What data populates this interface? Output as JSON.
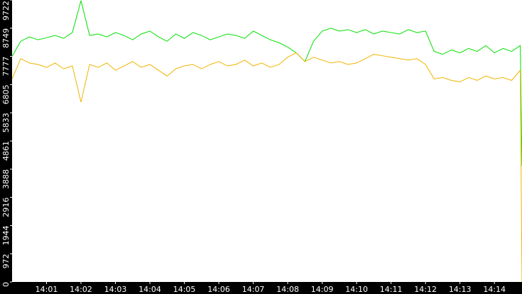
{
  "chart_data": {
    "type": "line",
    "x": [
      0,
      0.25,
      0.5,
      0.75,
      1,
      1.25,
      1.5,
      1.75,
      2,
      2.25,
      2.5,
      2.75,
      3,
      3.25,
      3.5,
      3.75,
      4,
      4.25,
      4.5,
      4.75,
      5,
      5.25,
      5.5,
      5.75,
      6,
      6.25,
      6.5,
      6.75,
      7,
      7.25,
      7.5,
      7.75,
      8,
      8.25,
      8.5,
      8.75,
      9,
      9.25,
      9.5,
      9.75,
      10,
      10.25,
      10.5,
      10.75,
      11,
      11.25,
      11.5,
      11.75,
      12,
      12.25,
      12.5,
      12.75,
      13,
      13.25,
      13.5,
      13.75,
      14,
      14.25,
      14.5,
      14.75,
      14.8
    ],
    "series": [
      {
        "color": "#00e000",
        "values": [
          7780,
          8300,
          8450,
          8350,
          8420,
          8500,
          8400,
          8600,
          9700,
          8500,
          8550,
          8450,
          8600,
          8500,
          8350,
          8550,
          8650,
          8450,
          8300,
          8550,
          8400,
          8600,
          8500,
          8350,
          8450,
          8550,
          8500,
          8400,
          8650,
          8500,
          8350,
          8250,
          8100,
          7900,
          7600,
          8300,
          8650,
          8750,
          8650,
          8700,
          8600,
          8700,
          8550,
          8650,
          8600,
          8550,
          8700,
          8600,
          8650,
          7950,
          7850,
          8000,
          7900,
          8050,
          7950,
          8150,
          7900,
          8050,
          7950,
          8150,
          4000
        ]
      },
      {
        "color": "#f0b400",
        "values": [
          7000,
          7700,
          7550,
          7500,
          7400,
          7550,
          7350,
          7450,
          6200,
          7500,
          7400,
          7550,
          7300,
          7450,
          7600,
          7400,
          7500,
          7300,
          7100,
          7350,
          7450,
          7500,
          7350,
          7500,
          7600,
          7450,
          7500,
          7650,
          7450,
          7550,
          7400,
          7500,
          7750,
          7900,
          7600,
          7750,
          7650,
          7550,
          7600,
          7500,
          7550,
          7700,
          7850,
          7800,
          7750,
          7700,
          7650,
          7700,
          7500,
          7000,
          7050,
          6950,
          6900,
          7050,
          6950,
          7100,
          7000,
          7050,
          6950,
          7300,
          0
        ]
      }
    ],
    "xlim": [
      0,
      14.8
    ],
    "xticks": [
      {
        "value": 1,
        "label": "14:01"
      },
      {
        "value": 2,
        "label": "14:02"
      },
      {
        "value": 3,
        "label": "14:03"
      },
      {
        "value": 4,
        "label": "14:04"
      },
      {
        "value": 5,
        "label": "14:05"
      },
      {
        "value": 6,
        "label": "14:06"
      },
      {
        "value": 7,
        "label": "14:07"
      },
      {
        "value": 8,
        "label": "14:08"
      },
      {
        "value": 9,
        "label": "14:09"
      },
      {
        "value": 10,
        "label": "14:10"
      },
      {
        "value": 11,
        "label": "14:11"
      },
      {
        "value": 12,
        "label": "14:12"
      },
      {
        "value": 13,
        "label": "14:13"
      },
      {
        "value": 14,
        "label": "14:14"
      }
    ],
    "ylim": [
      0,
      9722
    ],
    "yticks": [
      0,
      972,
      1944,
      2916,
      3888,
      4861,
      5833,
      6805,
      7777,
      8749,
      9722
    ]
  }
}
